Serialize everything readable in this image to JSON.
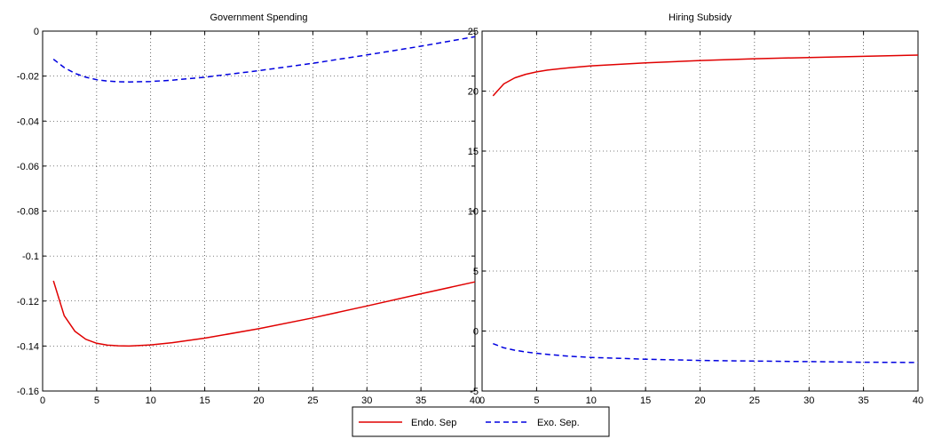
{
  "chart_data": [
    {
      "type": "line",
      "title": "Government Spending",
      "xlabel": "",
      "ylabel": "",
      "xlim": [
        0,
        40
      ],
      "ylim": [
        -0.16,
        0
      ],
      "xticks": [
        0,
        5,
        10,
        15,
        20,
        25,
        30,
        35,
        40
      ],
      "yticks": [
        0,
        -0.02,
        -0.04,
        -0.06,
        -0.08,
        -0.1,
        -0.12,
        -0.14,
        -0.16
      ],
      "ytick_labels": [
        "0",
        "-0.02",
        "-0.04",
        "-0.06",
        "-0.08",
        "-0.1",
        "-0.12",
        "-0.14",
        "-0.16"
      ],
      "grid": true,
      "series": [
        {
          "name": "Endo. Sep",
          "color": "#e00000",
          "dash": "solid",
          "x": [
            1,
            2,
            3,
            4,
            5,
            6,
            7,
            8,
            10,
            12,
            15,
            20,
            25,
            30,
            35,
            40
          ],
          "y": [
            -0.111,
            -0.1265,
            -0.1335,
            -0.137,
            -0.1388,
            -0.1396,
            -0.1399,
            -0.14,
            -0.1395,
            -0.1385,
            -0.1365,
            -0.1323,
            -0.1275,
            -0.1222,
            -0.1168,
            -0.1115
          ]
        },
        {
          "name": "Exo. Sep.",
          "color": "#0000e0",
          "dash": "dashed",
          "x": [
            1,
            2,
            3,
            4,
            5,
            6,
            7,
            8,
            10,
            12,
            15,
            20,
            25,
            30,
            35,
            40
          ],
          "y": [
            -0.0125,
            -0.0162,
            -0.0188,
            -0.0205,
            -0.0216,
            -0.0222,
            -0.0225,
            -0.0226,
            -0.0224,
            -0.0218,
            -0.0205,
            -0.0176,
            -0.0143,
            -0.0106,
            -0.0067,
            -0.0025
          ]
        }
      ]
    },
    {
      "type": "line",
      "title": "Hiring Subsidy",
      "xlabel": "",
      "ylabel": "",
      "xlim": [
        0,
        40
      ],
      "ylim": [
        -5,
        25
      ],
      "xticks": [
        0,
        5,
        10,
        15,
        20,
        25,
        30,
        35,
        40
      ],
      "yticks": [
        -5,
        0,
        5,
        10,
        15,
        20,
        25
      ],
      "ytick_labels": [
        "-5",
        "0",
        "5",
        "10",
        "15",
        "20",
        "25"
      ],
      "grid": true,
      "series": [
        {
          "name": "Endo. Sep",
          "color": "#e00000",
          "dash": "solid",
          "x": [
            1,
            2,
            3,
            4,
            5,
            6,
            8,
            10,
            15,
            20,
            25,
            30,
            35,
            40
          ],
          "y": [
            19.6,
            20.6,
            21.1,
            21.4,
            21.6,
            21.75,
            21.95,
            22.1,
            22.35,
            22.55,
            22.7,
            22.8,
            22.9,
            23.0
          ]
        },
        {
          "name": "Exo. Sep.",
          "color": "#0000e0",
          "dash": "dashed",
          "x": [
            1,
            2,
            3,
            4,
            5,
            6,
            8,
            10,
            15,
            20,
            25,
            30,
            35,
            40
          ],
          "y": [
            -1.05,
            -1.4,
            -1.6,
            -1.75,
            -1.85,
            -1.95,
            -2.1,
            -2.2,
            -2.35,
            -2.45,
            -2.5,
            -2.55,
            -2.6,
            -2.62
          ]
        }
      ]
    }
  ],
  "legend": {
    "placement": "bottom-center",
    "entries": [
      {
        "label": "Endo. Sep",
        "color": "#e00000",
        "dash": "solid"
      },
      {
        "label": "Exo. Sep.",
        "color": "#0000e0",
        "dash": "dashed"
      }
    ]
  }
}
